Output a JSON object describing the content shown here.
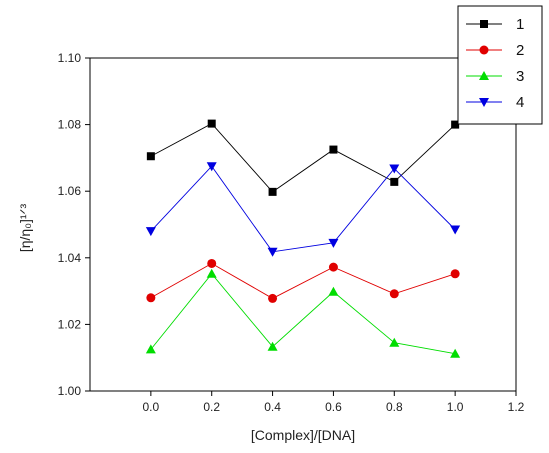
{
  "chart_data": {
    "type": "line",
    "title": "",
    "xlabel": "[Complex]/[DNA]",
    "ylabel": "[η/η₀]¹ᐟ³",
    "xlim": [
      -0.2,
      1.2
    ],
    "ylim": [
      1.0,
      1.1
    ],
    "xticks": [
      "0.0",
      "0.2",
      "0.4",
      "0.6",
      "0.8",
      "1.0",
      "1.2"
    ],
    "yticks": [
      "1.00",
      "1.02",
      "1.04",
      "1.06",
      "1.08",
      "1.10"
    ],
    "x": [
      0.0,
      0.2,
      0.4,
      0.6,
      0.8,
      1.0
    ],
    "grid": false,
    "legend_position": "top-right",
    "series": [
      {
        "name": "1",
        "color": "#000000",
        "marker": "square",
        "values": [
          1.0705,
          1.0803,
          1.0598,
          1.0725,
          1.0628,
          1.08
        ]
      },
      {
        "name": "2",
        "color": "#e00000",
        "marker": "circle",
        "values": [
          1.028,
          1.0383,
          1.0278,
          1.0372,
          1.0292,
          1.0352
        ]
      },
      {
        "name": "3",
        "color": "#00dd00",
        "marker": "triangle-up",
        "values": [
          1.0125,
          1.0352,
          1.0133,
          1.0298,
          1.0145,
          1.0112
        ]
      },
      {
        "name": "4",
        "color": "#0000e0",
        "marker": "triangle-down",
        "values": [
          1.048,
          1.0675,
          1.0418,
          1.0445,
          1.0668,
          1.0485
        ]
      }
    ]
  }
}
